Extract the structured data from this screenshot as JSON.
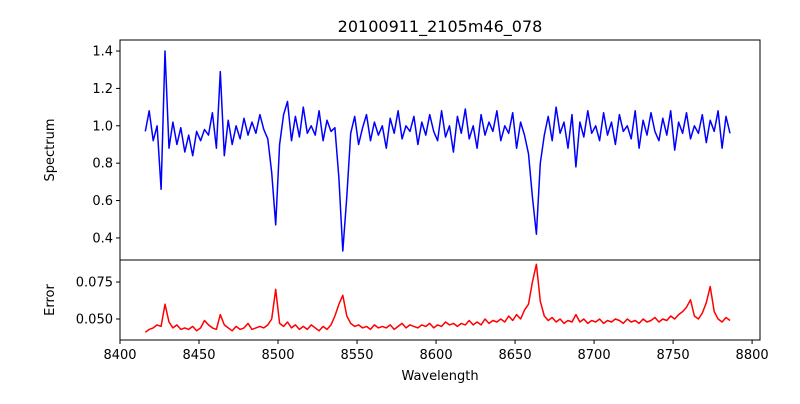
{
  "chart_data": [
    {
      "type": "line",
      "title": "20100911_2105m46_078",
      "xlabel": "",
      "ylabel": "Spectrum",
      "xlim": [
        8400,
        8805
      ],
      "ylim": [
        0.282,
        1.459
      ],
      "yticks": [
        0.4,
        0.6,
        0.8,
        1.0,
        1.2,
        1.4
      ],
      "ytick_labels": [
        "0.4",
        "0.6",
        "0.8",
        "1.0",
        "1.2",
        "1.4"
      ],
      "color": "#0000ff",
      "x_start": 8416,
      "x_step": 2.5,
      "values": [
        0.97,
        1.08,
        0.92,
        1.0,
        0.66,
        1.4,
        0.88,
        1.02,
        0.9,
        0.99,
        0.86,
        0.95,
        0.84,
        0.97,
        0.92,
        0.98,
        0.95,
        1.07,
        0.88,
        1.29,
        0.84,
        1.03,
        0.9,
        1.0,
        0.93,
        1.04,
        0.95,
        1.02,
        0.96,
        1.06,
        0.98,
        0.93,
        0.75,
        0.47,
        0.9,
        1.06,
        1.13,
        0.92,
        1.05,
        0.94,
        1.1,
        0.96,
        1.0,
        0.95,
        1.08,
        0.92,
        1.03,
        0.97,
        0.99,
        0.72,
        0.33,
        0.62,
        0.96,
        1.05,
        0.9,
        0.99,
        1.06,
        0.92,
        1.02,
        0.95,
        1.0,
        0.88,
        1.04,
        0.96,
        1.08,
        0.93,
        1.0,
        0.97,
        1.05,
        0.9,
        1.02,
        0.95,
        1.06,
        0.97,
        0.92,
        1.08,
        0.94,
        1.0,
        0.86,
        1.05,
        0.96,
        1.09,
        0.93,
        1.0,
        0.88,
        1.06,
        0.95,
        1.02,
        0.97,
        1.08,
        0.92,
        1.0,
        0.96,
        1.07,
        0.88,
        1.02,
        0.95,
        0.85,
        0.62,
        0.42,
        0.8,
        0.95,
        1.05,
        0.92,
        1.1,
        0.96,
        1.02,
        0.88,
        1.06,
        0.78,
        1.02,
        0.94,
        1.08,
        0.96,
        1.0,
        0.92,
        1.07,
        0.95,
        1.02,
        0.9,
        1.06,
        0.97,
        1.0,
        0.93,
        1.08,
        0.88,
        1.03,
        0.95,
        1.07,
        0.97,
        0.92,
        1.04,
        0.95,
        1.08,
        0.87,
        1.02,
        0.96,
        1.07,
        0.93,
        1.0,
        0.96,
        1.06,
        0.91,
        1.03,
        0.97,
        1.08,
        0.88,
        1.05,
        0.96
      ]
    },
    {
      "type": "line",
      "xlabel": "Wavelength",
      "ylabel": "Error",
      "xlim": [
        8400,
        8805
      ],
      "ylim": [
        0.0358,
        0.0899
      ],
      "xticks": [
        8400,
        8450,
        8500,
        8550,
        8600,
        8650,
        8700,
        8750,
        8800
      ],
      "xtick_labels": [
        "8400",
        "8450",
        "8500",
        "8550",
        "8600",
        "8650",
        "8700",
        "8750",
        "8800"
      ],
      "yticks": [
        0.05,
        0.075
      ],
      "ytick_labels": [
        "0.050",
        "0.075"
      ],
      "color": "#ff0000",
      "x_start": 8416,
      "x_step": 2.5,
      "values": [
        0.041,
        0.043,
        0.044,
        0.046,
        0.045,
        0.06,
        0.048,
        0.044,
        0.046,
        0.043,
        0.044,
        0.043,
        0.045,
        0.042,
        0.044,
        0.049,
        0.046,
        0.044,
        0.043,
        0.053,
        0.046,
        0.044,
        0.042,
        0.045,
        0.043,
        0.044,
        0.047,
        0.043,
        0.044,
        0.045,
        0.044,
        0.046,
        0.05,
        0.07,
        0.047,
        0.045,
        0.048,
        0.044,
        0.046,
        0.043,
        0.045,
        0.043,
        0.046,
        0.044,
        0.042,
        0.045,
        0.043,
        0.046,
        0.052,
        0.06,
        0.066,
        0.052,
        0.047,
        0.045,
        0.046,
        0.044,
        0.045,
        0.043,
        0.046,
        0.044,
        0.045,
        0.044,
        0.046,
        0.043,
        0.045,
        0.047,
        0.044,
        0.046,
        0.045,
        0.044,
        0.046,
        0.045,
        0.047,
        0.044,
        0.046,
        0.045,
        0.048,
        0.046,
        0.047,
        0.045,
        0.047,
        0.046,
        0.049,
        0.046,
        0.048,
        0.046,
        0.05,
        0.047,
        0.049,
        0.048,
        0.05,
        0.048,
        0.052,
        0.049,
        0.053,
        0.05,
        0.056,
        0.06,
        0.075,
        0.087,
        0.062,
        0.052,
        0.049,
        0.051,
        0.048,
        0.05,
        0.047,
        0.049,
        0.048,
        0.053,
        0.048,
        0.05,
        0.047,
        0.049,
        0.048,
        0.05,
        0.047,
        0.049,
        0.048,
        0.05,
        0.049,
        0.047,
        0.05,
        0.048,
        0.049,
        0.047,
        0.05,
        0.048,
        0.049,
        0.051,
        0.048,
        0.05,
        0.049,
        0.052,
        0.05,
        0.053,
        0.055,
        0.058,
        0.063,
        0.052,
        0.05,
        0.054,
        0.061,
        0.072,
        0.055,
        0.05,
        0.048,
        0.051,
        0.049
      ]
    }
  ]
}
